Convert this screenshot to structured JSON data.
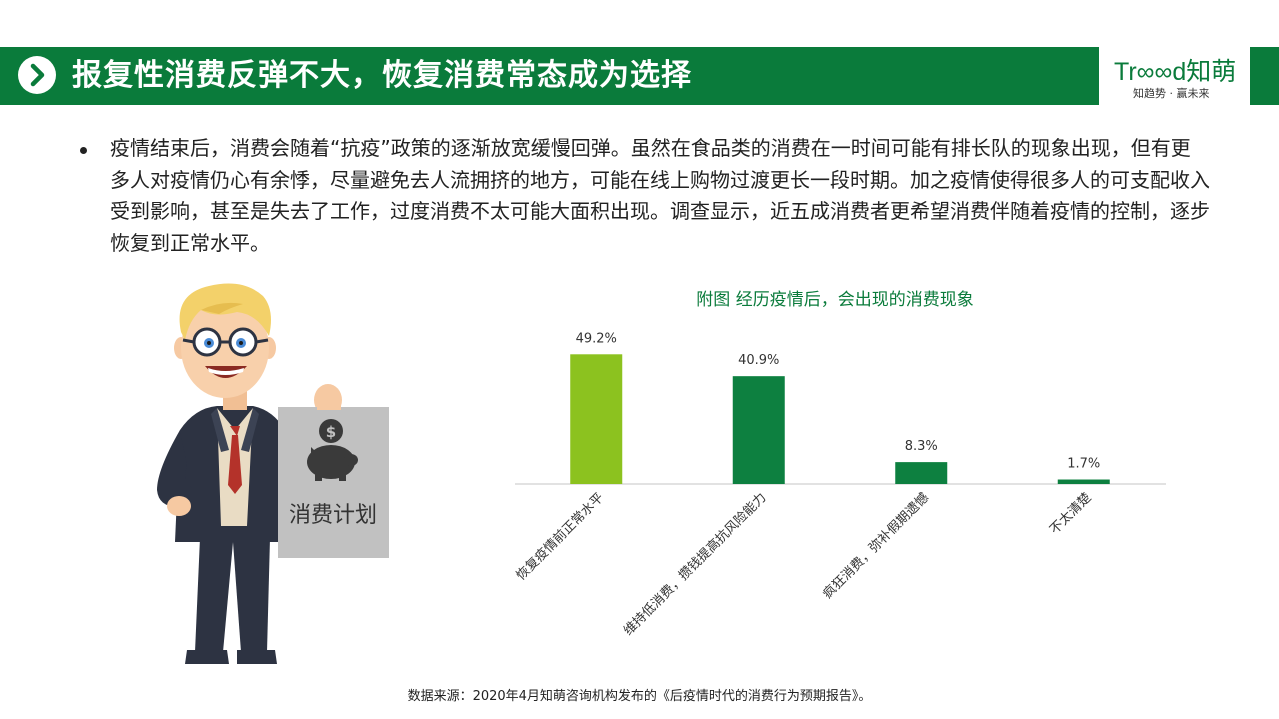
{
  "header": {
    "title": "报复性消费反弹不大，恢复消费常态成为选择",
    "icon": "chevron-right-icon",
    "accent_color": "#0a7b3b"
  },
  "logo": {
    "word": "Tr∞∞d知萌",
    "tagline": "知趋势 · 赢未来"
  },
  "body": {
    "bullet": "疫情结束后，消费会随着“抗疫”政策的逐渐放宽缓慢回弹。虽然在食品类的消费在一时间可能有排长队的现象出现，但有更多人对疫情仍心有余悸，尽量避免去人流拥挤的地方，可能在线上购物过渡更长一段时期。加之疫情使得很多人的可支配收入受到影响，甚至是失去了工作，过度消费不太可能大面积出现。调查显示，近五成消费者更希望消费伴随着疫情的控制，逐步恢复到正常水平。"
  },
  "illustration": {
    "sign_text": "消费计划",
    "sign_icon": "piggy-bank-dollar-icon"
  },
  "chart_data": {
    "type": "bar",
    "title": "附图  经历疫情后，会出现的消费现象",
    "categories": [
      "恢复疫情前正常水平",
      "维持低消费，攒钱提高抗风险能力",
      "疯狂消费，弥补假期遗憾",
      "不太清楚"
    ],
    "values": [
      49.2,
      40.9,
      8.3,
      1.7
    ],
    "value_labels": [
      "49.2%",
      "40.9%",
      "8.3%",
      "1.7%"
    ],
    "colors": [
      "#8cc21f",
      "#0d8040",
      "#0d8040",
      "#0d8040"
    ],
    "xlabel": "",
    "ylabel": "",
    "ylim": [
      0,
      55
    ],
    "grid": false,
    "legend": "none"
  },
  "footer": {
    "source": "数据来源：2020年4月知萌咨询机构发布的《后疫情时代的消费行为预期报告》。"
  }
}
